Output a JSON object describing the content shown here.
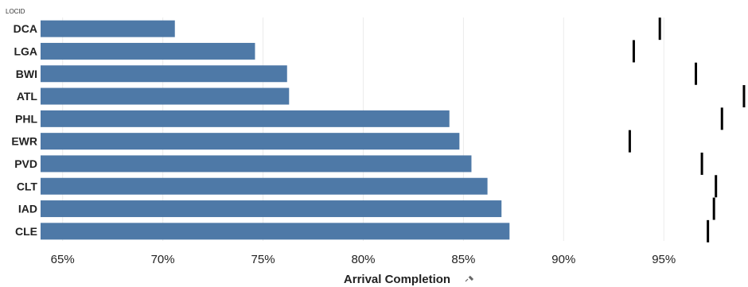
{
  "chart_data": {
    "type": "bar",
    "row_header": "LOCID",
    "xlabel": "Arrival Completion",
    "xlim": [
      63.9,
      99.2
    ],
    "xticks": [
      65,
      70,
      75,
      80,
      85,
      90,
      95
    ],
    "xtick_labels": [
      "65%",
      "70%",
      "75%",
      "80%",
      "85%",
      "90%",
      "95%"
    ],
    "grid": true,
    "categories": [
      "DCA",
      "LGA",
      "BWI",
      "ATL",
      "PHL",
      "EWR",
      "PVD",
      "CLT",
      "IAD",
      "CLE"
    ],
    "series": [
      {
        "values": [
          70.6,
          74.6,
          76.2,
          76.3,
          84.3,
          84.8,
          85.4,
          86.2,
          86.9,
          87.3
        ]
      },
      {
        "mark": "reference-tick",
        "values": [
          94.8,
          93.5,
          96.6,
          99.0,
          97.9,
          93.3,
          96.9,
          97.6,
          97.5,
          97.2
        ]
      }
    ],
    "colors": {
      "bar": "#4e79a7",
      "reference": "#000000",
      "grid": "#ebebeb"
    }
  },
  "icons": {
    "axis_title_icon": "pin-icon"
  }
}
